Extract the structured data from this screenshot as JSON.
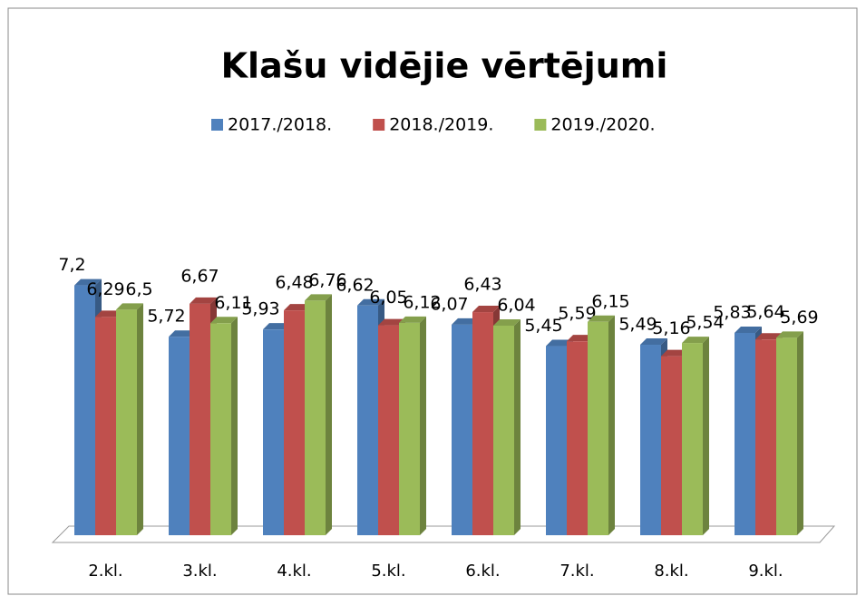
{
  "chart_data": {
    "type": "bar3d",
    "title": "Klašu vidējie vērtējumi",
    "categories": [
      "2.kl.",
      "3.kl.",
      "4.kl.",
      "5.kl.",
      "6.kl.",
      "7.kl.",
      "8.kl.",
      "9.kl."
    ],
    "series": [
      {
        "name": "2017./2018.",
        "color": "#4f81bd",
        "values": [
          7.2,
          5.72,
          5.93,
          6.62,
          6.07,
          5.45,
          5.49,
          5.83
        ],
        "value_labels": [
          "7,2",
          "5,72",
          "5,93",
          "6,62",
          "6,07",
          "5,45",
          "5,49",
          "5,83"
        ]
      },
      {
        "name": "2018./2019.",
        "color": "#c0504d",
        "values": [
          6.29,
          6.67,
          6.48,
          6.05,
          6.43,
          5.59,
          5.16,
          5.64
        ],
        "value_labels": [
          "6,29",
          "6,67",
          "6,48",
          "6,05",
          "6,43",
          "5,59",
          "5,16",
          "5,64"
        ]
      },
      {
        "name": "2019./2020.",
        "color": "#9bbb59",
        "values": [
          6.5,
          6.11,
          6.76,
          6.12,
          6.04,
          6.15,
          5.54,
          5.69
        ],
        "value_labels": [
          "6,5",
          "6,11",
          "6,76",
          "6,12",
          "6,04",
          "6,15",
          "5,54",
          "5,69"
        ]
      }
    ],
    "ylim": [
      0,
      8
    ],
    "legend": "top"
  }
}
